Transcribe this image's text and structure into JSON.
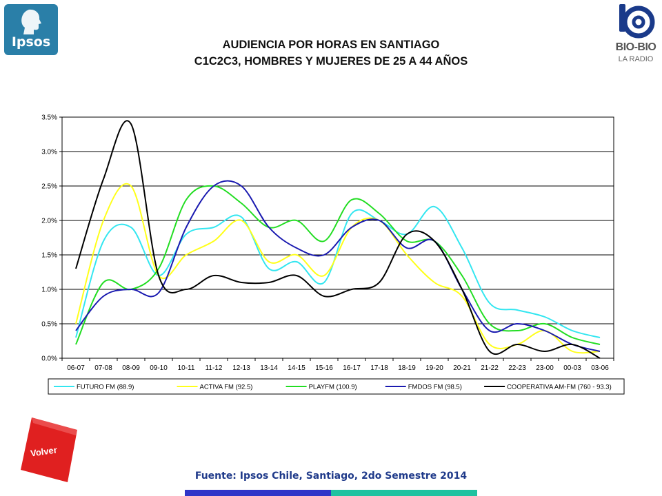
{
  "header": {
    "title_line1": "AUDIENCIA POR HORAS EN SANTIAGO",
    "title_line2": "C1C2C3, HOMBRES Y MUJERES DE 25 A 44 AÑOS"
  },
  "logos": {
    "ipsos": "Ipsos",
    "biobio": "BIO-BIO",
    "biobio_sub": "LA RADIO"
  },
  "nav": {
    "volver_label": "Volver"
  },
  "footer": {
    "source": "Fuente: Ipsos Chile, Santiago, 2do Semestre 2014"
  },
  "colors": {
    "ipsos": "#2a7fa8",
    "volver": "#e02020",
    "source_text": "#1f3a8a",
    "bar_left": "#2f35c8",
    "bar_right": "#1fc2a0"
  },
  "chart_data": {
    "type": "line",
    "title": "",
    "xlabel": "",
    "ylabel": "",
    "ylim": [
      0,
      0.035
    ],
    "y_ticks": [
      "0.0%",
      "0.5%",
      "1.0%",
      "1.5%",
      "2.0%",
      "2.5%",
      "3.0%",
      "3.5%"
    ],
    "grid": "horizontal",
    "legend_position": "bottom",
    "categories": [
      "06-07",
      "07-08",
      "08-09",
      "09-10",
      "10-11",
      "11-12",
      "12-13",
      "13-14",
      "14-15",
      "15-16",
      "16-17",
      "17-18",
      "18-19",
      "19-20",
      "20-21",
      "21-22",
      "22-23",
      "23-00",
      "00-03",
      "03-06"
    ],
    "series": [
      {
        "name": "FUTURO FM (88.9)",
        "color": "#33e6f0",
        "values": [
          0.003,
          0.017,
          0.019,
          0.012,
          0.018,
          0.019,
          0.0205,
          0.013,
          0.014,
          0.011,
          0.021,
          0.02,
          0.018,
          0.022,
          0.016,
          0.008,
          0.007,
          0.006,
          0.004,
          0.003
        ]
      },
      {
        "name": "ACTIVA FM (92.5)",
        "color": "#ffff1a",
        "values": [
          0.005,
          0.02,
          0.025,
          0.012,
          0.015,
          0.017,
          0.02,
          0.014,
          0.015,
          0.012,
          0.019,
          0.02,
          0.015,
          0.011,
          0.009,
          0.002,
          0.002,
          0.004,
          0.001,
          0.001
        ]
      },
      {
        "name": "PLAYFM (100.9)",
        "color": "#22dd22",
        "values": [
          0.002,
          0.011,
          0.01,
          0.013,
          0.023,
          0.025,
          0.0225,
          0.019,
          0.02,
          0.017,
          0.023,
          0.021,
          0.017,
          0.017,
          0.012,
          0.005,
          0.004,
          0.005,
          0.003,
          0.002
        ]
      },
      {
        "name": "FMDOS FM (98.5)",
        "color": "#1a1ab0",
        "values": [
          0.004,
          0.009,
          0.01,
          0.0095,
          0.019,
          0.025,
          0.025,
          0.019,
          0.016,
          0.015,
          0.019,
          0.02,
          0.016,
          0.017,
          0.01,
          0.004,
          0.005,
          0.004,
          0.002,
          0.001
        ]
      },
      {
        "name": "COOPERATIVA AM-FM (760 - 93.3)",
        "color": "#000000",
        "values": [
          0.013,
          0.026,
          0.034,
          0.012,
          0.01,
          0.012,
          0.011,
          0.011,
          0.012,
          0.009,
          0.01,
          0.011,
          0.018,
          0.017,
          0.01,
          0.001,
          0.002,
          0.001,
          0.002,
          0.0
        ]
      }
    ]
  }
}
